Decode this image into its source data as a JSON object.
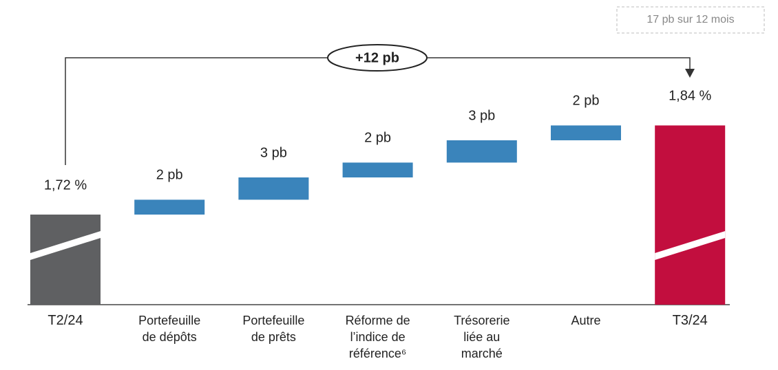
{
  "chart_data": {
    "type": "waterfall",
    "categories": [
      [
        "T2/24"
      ],
      [
        "Portefeuille",
        "de dépôts"
      ],
      [
        "Portefeuille",
        "de prêts"
      ],
      [
        "Réforme de",
        "l’indice de",
        "référence⁶"
      ],
      [
        "Trésorerie",
        "liée au",
        "marché"
      ],
      [
        "Autre"
      ],
      [
        "T3/24"
      ]
    ],
    "values": [
      1.72,
      2,
      3,
      2,
      3,
      2,
      1.84
    ],
    "value_labels": [
      "1,72 %",
      "2 pb",
      "3 pb",
      "2 pb",
      "3 pb",
      "2 pb",
      "1,84 %"
    ],
    "start_color": "#5f6062",
    "step_color": "#3a84bb",
    "end_color": "#c20e3e",
    "annotation": "+12 pb",
    "note": "17 pb sur 12 mois"
  }
}
